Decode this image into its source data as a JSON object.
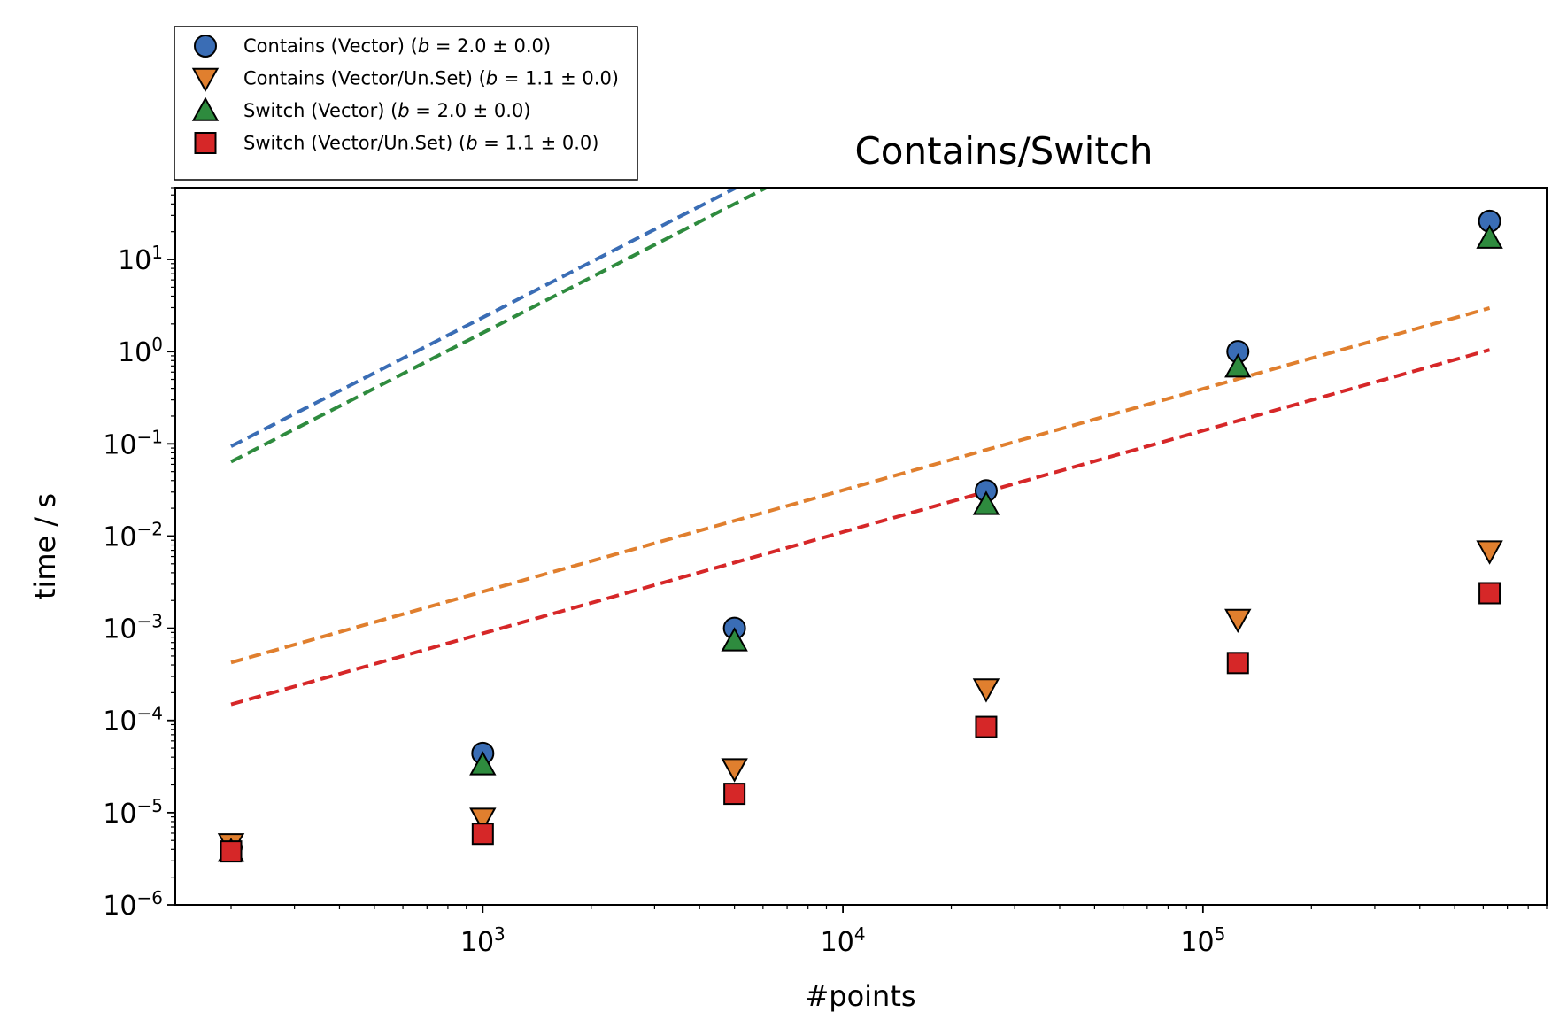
{
  "chart_data": {
    "type": "scatter",
    "title": "Contains/Switch",
    "xlabel": "#points",
    "ylabel": "time / s",
    "xscale": "log",
    "yscale": "log",
    "xlim": [
      140,
      900000
    ],
    "ylim": [
      1e-06,
      60
    ],
    "x_ticks": [
      {
        "value": 1000,
        "base": "10",
        "exp": "3"
      },
      {
        "value": 10000,
        "base": "10",
        "exp": "4"
      },
      {
        "value": 100000,
        "base": "10",
        "exp": "5"
      }
    ],
    "y_ticks": [
      {
        "value": 10,
        "base": "10",
        "exp": "1"
      },
      {
        "value": 1,
        "base": "10",
        "exp": "0"
      },
      {
        "value": 0.1,
        "base": "10",
        "exp": "−1"
      },
      {
        "value": 0.01,
        "base": "10",
        "exp": "−2"
      },
      {
        "value": 0.001,
        "base": "10",
        "exp": "−3"
      },
      {
        "value": 0.0001,
        "base": "10",
        "exp": "−4"
      },
      {
        "value": 1e-05,
        "base": "10",
        "exp": "−5"
      },
      {
        "value": 1e-06,
        "base": "10",
        "exp": "−6"
      }
    ],
    "grid": false,
    "legend_position": "top-left, outside above plot",
    "series": [
      {
        "name": "Contains (Vector) (b = 2.0 ± 0.0)",
        "label_main": "Contains (Vector) (",
        "label_b": "b",
        "label_rest": " = 2.0 ± 0.0)",
        "marker": "circle",
        "color": "#3a6db5",
        "x": [
          200,
          1000,
          5000,
          25000,
          125000,
          625000
        ],
        "y": [
          4.2e-06,
          4.4e-05,
          0.001,
          0.031,
          1.0,
          26
        ],
        "fit": {
          "a": 2.35e-06,
          "b": 2.0
        }
      },
      {
        "name": "Contains (Vector/Un.Set) (b = 1.1 ± 0.0)",
        "label_main": "Contains (Vector/Un.Set) (",
        "label_b": "b",
        "label_rest": " = 1.1 ± 0.0)",
        "marker": "triangle-down",
        "color": "#e07f2e",
        "x": [
          200,
          1000,
          5000,
          25000,
          125000,
          625000
        ],
        "y": [
          4.6e-06,
          8.7e-06,
          3e-05,
          0.00022,
          0.00125,
          0.0069
        ],
        "fit": {
          "a": 1.25e-06,
          "b": 1.1
        }
      },
      {
        "name": "Switch (Vector) (b = 2.0 ± 0.0)",
        "label_main": "Switch (Vector) (",
        "label_b": "b",
        "label_rest": " = 2.0 ± 0.0)",
        "marker": "triangle-up",
        "color": "#2e8b3e",
        "x": [
          200,
          1000,
          5000,
          25000,
          125000,
          625000
        ],
        "y": [
          3.8e-06,
          3.3e-05,
          0.00073,
          0.022,
          0.68,
          17
        ],
        "fit": {
          "a": 1.6e-06,
          "b": 2.0
        }
      },
      {
        "name": "Switch (Vector/Un.Set) (b = 1.1 ± 0.0)",
        "label_main": "Switch (Vector/Un.Set) (",
        "label_b": "b",
        "label_rest": " = 1.1 ± 0.0)",
        "marker": "square",
        "color": "#d62728",
        "x": [
          200,
          1000,
          5000,
          25000,
          125000,
          625000
        ],
        "y": [
          3.8e-06,
          5.9e-06,
          1.6e-05,
          8.5e-05,
          0.00042,
          0.0024
        ],
        "fit": {
          "a": 4.4e-07,
          "b": 1.1
        }
      }
    ]
  }
}
